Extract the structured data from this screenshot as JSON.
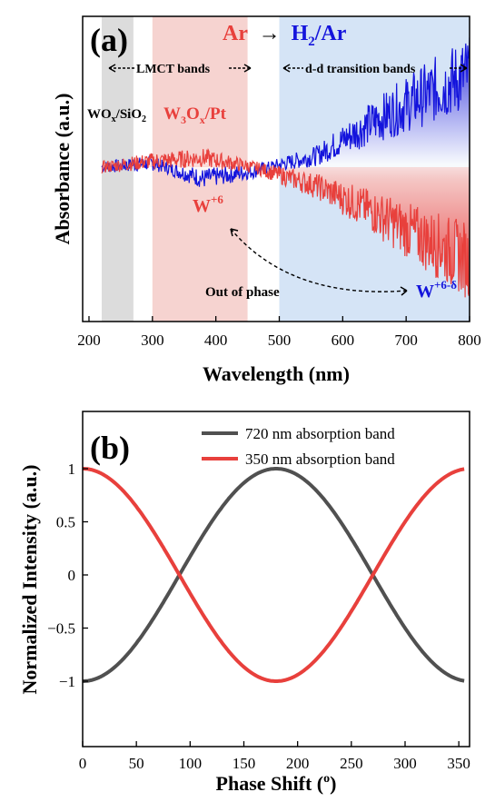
{
  "chart_data": [
    {
      "type": "line",
      "panel_label": "(a)",
      "title_parts": {
        "left": "Ar",
        "arrow": "→",
        "right_main": "H",
        "right_sub": "2",
        "right_tail": "/Ar"
      },
      "xlabel": "Wavelength (nm)",
      "ylabel": "Absorbance (a.u.)",
      "xlim": [
        190,
        800
      ],
      "xticks": [
        200,
        300,
        400,
        500,
        600,
        700,
        800
      ],
      "yticks_shown": false,
      "bands": [
        {
          "name": "WOx/SiO2",
          "x": [
            220,
            270
          ],
          "color": "#dcdcdc"
        },
        {
          "name": "W3Ox/Pt",
          "x": [
            300,
            450
          ],
          "color": "#f6d3d0"
        },
        {
          "name": "d-d region",
          "x": [
            500,
            800
          ],
          "color": "#d5e4f6"
        }
      ],
      "annotations": {
        "lmct": "LMCT bands",
        "dd": "d-d transition bands",
        "wox_main": "WO",
        "wox_sub": "x",
        "wox_tail": "/SiO",
        "wox_sub2": "2",
        "w3ox_main": "W",
        "w3ox_sub": "3",
        "w3ox_mid": "O",
        "w3ox_sub2": "x",
        "w3ox_tail": "/Pt",
        "w6_main": "W",
        "w6_sup": "+6",
        "w6d_main": "W",
        "w6d_sup": "+6-δ",
        "phase": "Out of phase"
      },
      "series": [
        {
          "color": "#1414dc",
          "values_description_x": [
            220,
            300,
            380,
            460,
            560,
            640,
            720,
            795
          ],
          "values": [
            0.0,
            0.05,
            -0.15,
            -0.05,
            0.15,
            0.55,
            0.9,
            1.2
          ]
        },
        {
          "color": "#e8403c",
          "values_description_x": [
            220,
            300,
            380,
            460,
            560,
            640,
            720,
            795
          ],
          "values": [
            0.0,
            0.08,
            0.12,
            0.0,
            -0.25,
            -0.55,
            -0.9,
            -1.2
          ]
        }
      ]
    },
    {
      "type": "line",
      "panel_label": "(b)",
      "xlabel_main": "Phase Shift (",
      "xlabel_sup": "o",
      "xlabel_tail": ")",
      "ylabel": "Normalized Intensity (a.u.)",
      "xlim": [
        0,
        360
      ],
      "ylim": [
        -1.5,
        1.5
      ],
      "xticks": [
        0,
        50,
        100,
        150,
        200,
        250,
        300,
        350
      ],
      "yticks": [
        -1,
        -0.5,
        0,
        0.5,
        1
      ],
      "ytick_labels": [
        "−1",
        "−0.5",
        "0",
        "0.5",
        "1"
      ],
      "series": [
        {
          "name": "720 nm absorption band",
          "color": "#505050",
          "x": [
            0,
            45,
            90,
            135,
            180,
            225,
            270,
            315,
            355
          ],
          "values": [
            -1,
            -0.71,
            0,
            0.71,
            1,
            0.71,
            0,
            -0.71,
            -1
          ]
        },
        {
          "name": "350 nm absorption band",
          "color": "#e8403c",
          "x": [
            0,
            45,
            90,
            135,
            180,
            225,
            270,
            315,
            355
          ],
          "values": [
            1,
            0.71,
            0,
            -0.71,
            -1,
            -0.71,
            0,
            0.71,
            1
          ]
        }
      ],
      "legend_position": "top-right"
    }
  ]
}
